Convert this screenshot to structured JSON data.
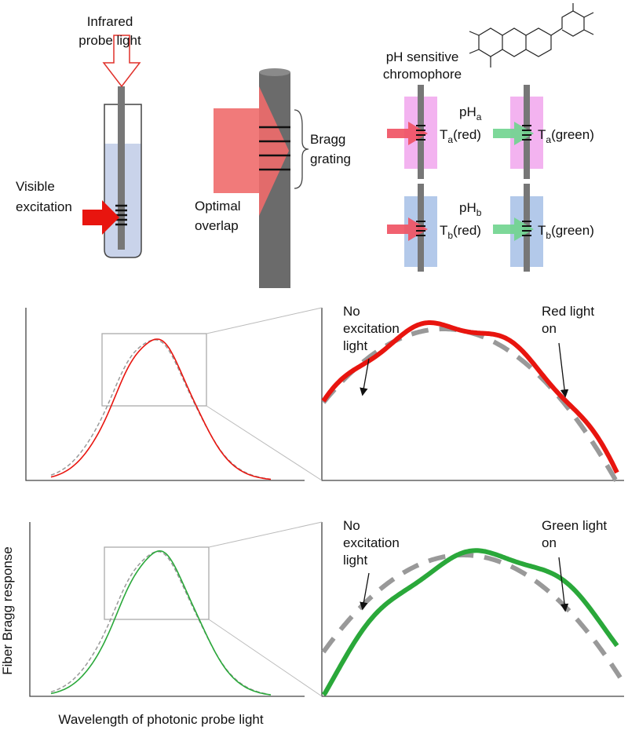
{
  "top_panel": {
    "probe_light": [
      "Infrared",
      "probe light"
    ],
    "visible_excitation": [
      "Visible",
      "excitation"
    ],
    "bragg_grating": [
      "Bragg",
      "grating"
    ],
    "optimal_overlap": [
      "Optimal",
      "overlap"
    ],
    "chromophore": [
      "pH sensitive",
      "chromophore"
    ],
    "states": [
      {
        "ph": {
          "base": "pH",
          "sub": "a"
        },
        "red": {
          "base": "T",
          "sub": "a",
          "suffix": "(red)"
        },
        "green": {
          "base": "T",
          "sub": "a",
          "suffix": "(green)"
        }
      },
      {
        "ph": {
          "base": "pH",
          "sub": "b"
        },
        "red": {
          "base": "T",
          "sub": "b",
          "suffix": "(red)"
        },
        "green": {
          "base": "T",
          "sub": "b",
          "suffix": "(green)"
        }
      }
    ]
  },
  "plots": [
    {
      "reference_label": [
        "No",
        "excitation",
        "light"
      ],
      "light_label": [
        "Red light",
        "on"
      ]
    },
    {
      "reference_label": [
        "No",
        "excitation",
        "light"
      ],
      "light_label": [
        "Green light",
        "on"
      ]
    }
  ],
  "y_axis_label": "Fiber Bragg response",
  "x_axis_label": "Wavelength of photonic probe light"
}
